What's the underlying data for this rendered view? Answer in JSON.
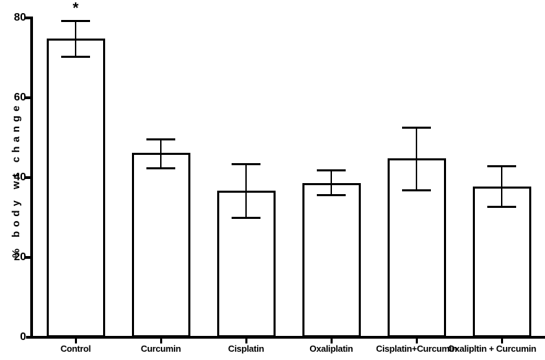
{
  "figure": {
    "y_axis_title": "% body wt change"
  },
  "chart_data": {
    "type": "bar",
    "title": "",
    "xlabel": "",
    "ylabel": "% body wt change",
    "ylim": [
      0,
      80
    ],
    "y_ticks": [
      0,
      20,
      40,
      60,
      80
    ],
    "grid": false,
    "legend": "none",
    "bar_fill": "#ffffff",
    "bar_border": "#000000",
    "categories": [
      "Control",
      "Curcumin",
      "Cisplatin",
      "Oxaliplatin",
      "Cisplatin+Curcumin",
      "Oxalipltin + Curcumin"
    ],
    "values": [
      74.8,
      46.2,
      36.7,
      38.7,
      44.8,
      37.8
    ],
    "error_upper": [
      79.4,
      49.8,
      43.7,
      42.1,
      52.8,
      43.1
    ],
    "error_lower": [
      70.0,
      42.0,
      29.6,
      35.3,
      36.6,
      32.4
    ],
    "annotations": [
      {
        "text": "*",
        "category": "Control"
      }
    ]
  }
}
